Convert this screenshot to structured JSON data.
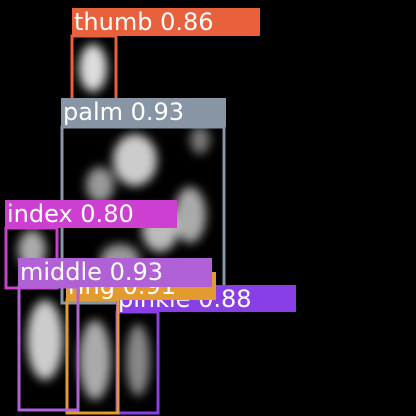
{
  "detections": [
    {
      "label": "thumb 0.86"
    },
    {
      "label": "palm 0.93"
    },
    {
      "label": "pinkie 0.88"
    },
    {
      "label": "ring 0.91"
    },
    {
      "label": "index 0.80"
    },
    {
      "label": "middle 0.93"
    }
  ]
}
